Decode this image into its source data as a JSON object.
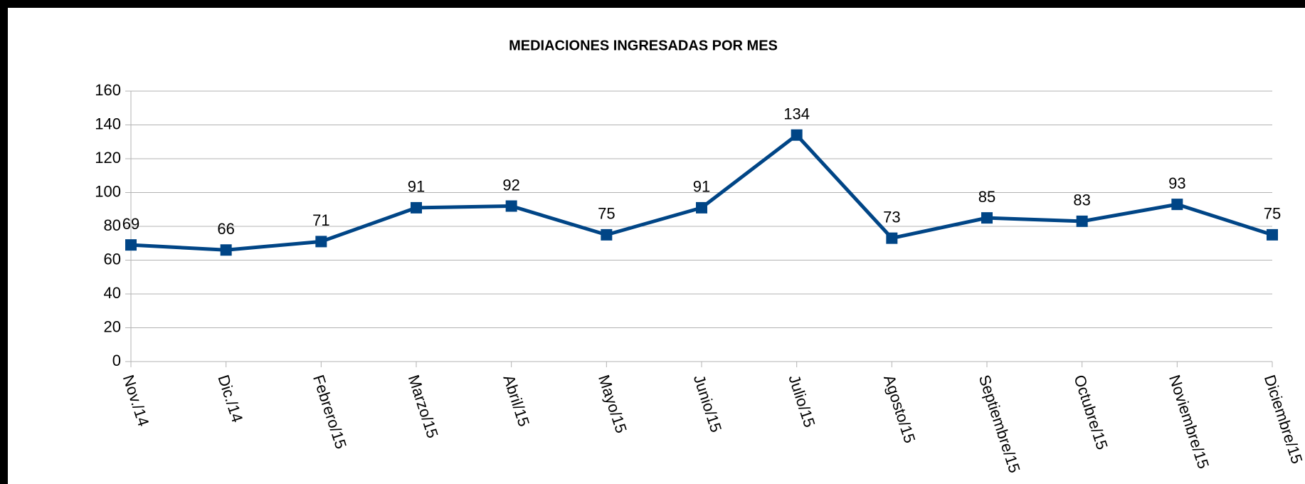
{
  "chart_data": {
    "type": "line",
    "title": "MEDIACIONES INGRESADAS POR MES",
    "categories": [
      "Nov./14",
      "Dic./14",
      "Febrero/15",
      "Marzo/15",
      "Abril/15",
      "Mayo/15",
      "Junio/15",
      "Julio/15",
      "Agosto/15",
      "Septiembre/15",
      "Octubre/15",
      "Noviembre/15",
      "Diciembre/15"
    ],
    "series": [
      {
        "name": "Mediaciones",
        "color": "#004586",
        "values": [
          69,
          66,
          71,
          91,
          92,
          75,
          91,
          134,
          73,
          85,
          83,
          93,
          75
        ]
      }
    ],
    "ylim": [
      0,
      160
    ],
    "yticks": [
      0,
      20,
      40,
      60,
      80,
      100,
      120,
      140,
      160
    ],
    "grid": true
  }
}
